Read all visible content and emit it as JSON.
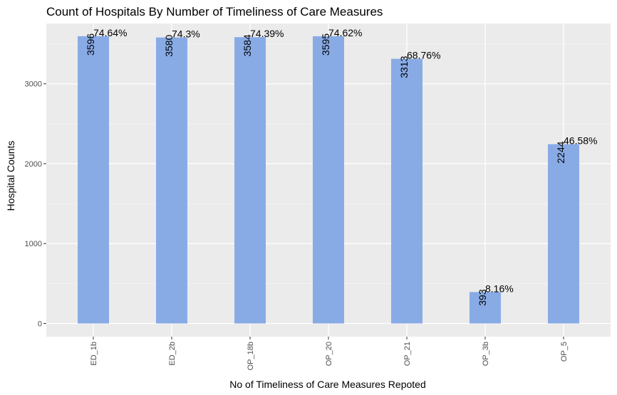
{
  "chart_data": {
    "type": "bar",
    "title": "Count of Hospitals By Number of Timeliness of Care Measures",
    "xlabel": "No of Timeliness of Care Measures Repoted",
    "ylabel": "Hospital Counts",
    "categories": [
      "ED_1b",
      "ED_2b",
      "OP_18b",
      "OP_20",
      "OP_21",
      "OP_3b",
      "OP_5"
    ],
    "values": [
      3596,
      3580,
      3584,
      3595,
      3313,
      393,
      2244
    ],
    "value_labels": [
      "3596",
      "3580",
      "3584",
      "3595",
      "3313",
      "393",
      "2244"
    ],
    "percent_labels": [
      "74.64%",
      "74.3%",
      "74.39%",
      "74.62%",
      "68.76%",
      "8.16%",
      "46.58%"
    ],
    "y_ticks": [
      0,
      1000,
      2000,
      3000
    ],
    "y_tick_labels": [
      "0",
      "1000",
      "2000",
      "3000"
    ],
    "ylim": [
      -165,
      3755
    ],
    "grid": true,
    "colors": {
      "bar": "#88abe6",
      "panel": "#ebebeb",
      "grid_major": "#ffffff",
      "grid_minor": "#f5f5f5"
    }
  }
}
